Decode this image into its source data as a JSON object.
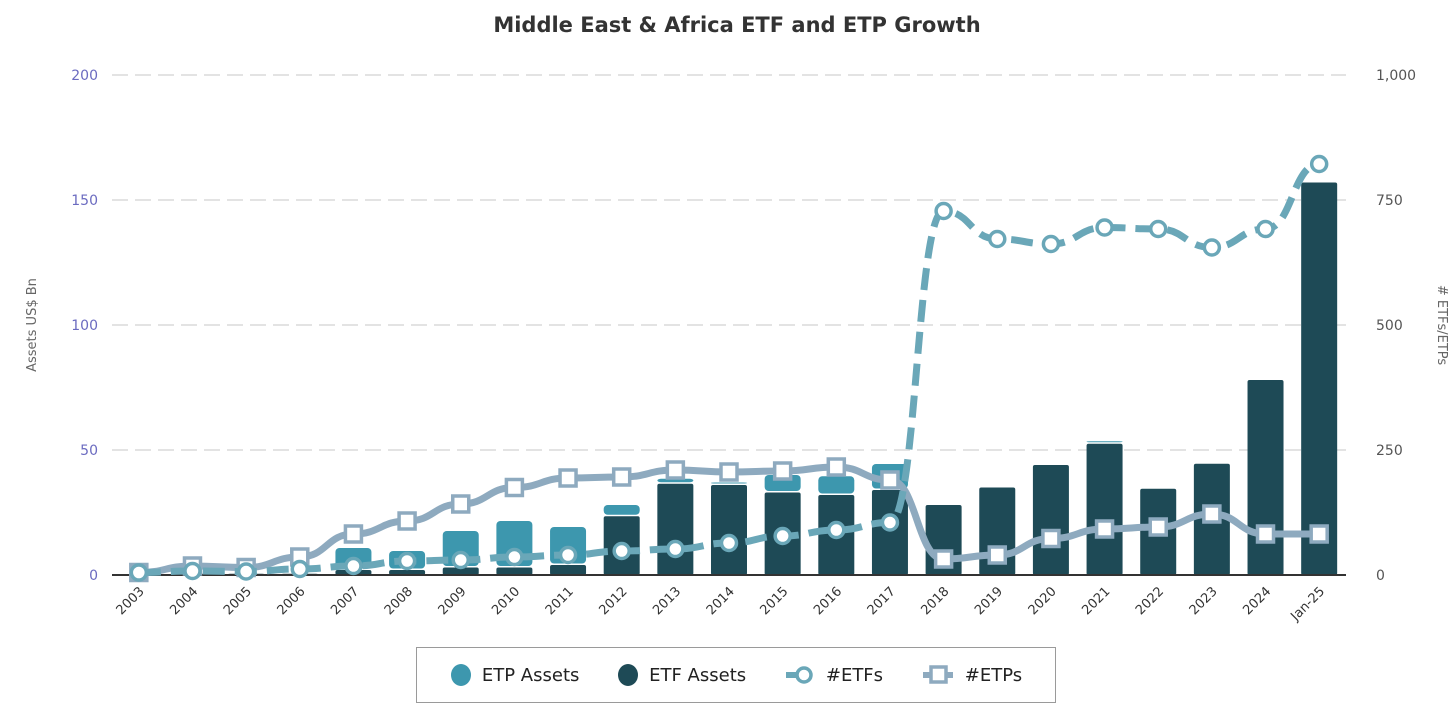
{
  "chart_data": {
    "type": "bar",
    "title": "Middle East & Africa ETF and ETP Growth",
    "xlabel": "",
    "ylabel": "Assets US$ Bn",
    "ylabel_right": "# ETFs/ETPs",
    "ylim": [
      0,
      200
    ],
    "ylim_right": [
      0,
      1000
    ],
    "yticks": [
      "0",
      "50",
      "100",
      "150",
      "200"
    ],
    "yticks_right": [
      "0",
      "250",
      "500",
      "750",
      "1,000"
    ],
    "grid": true,
    "legend_position": "bottom",
    "categories": [
      "2003",
      "2004",
      "2005",
      "2006",
      "2007",
      "2008",
      "2009",
      "2010",
      "2011",
      "2012",
      "2013",
      "2014",
      "2015",
      "2016",
      "2017",
      "2018",
      "2019",
      "2020",
      "2021",
      "2022",
      "2023",
      "2024",
      "Jan-25"
    ],
    "series": [
      {
        "name": "ETF Assets",
        "type": "bar",
        "stack": "assets",
        "axis": "left",
        "color": "#1e4a56",
        "values": [
          0.3,
          0.5,
          0.5,
          0.5,
          2,
          2,
          3,
          3,
          4,
          23.5,
          36.5,
          36,
          33,
          32,
          34,
          28,
          35,
          44,
          52.5,
          34.5,
          44.5,
          78,
          157
        ]
      },
      {
        "name": "ETP Assets",
        "type": "bar",
        "stack": "assets",
        "axis": "left",
        "color": "#3d97ae",
        "values": [
          0.2,
          0.5,
          0.5,
          0.5,
          8.8,
          7.6,
          14.6,
          18.6,
          15.2,
          4.5,
          2,
          1,
          7,
          7.5,
          10.4,
          0,
          0,
          0,
          1,
          0,
          0,
          0,
          0
        ]
      },
      {
        "name": "#ETFs",
        "type": "line",
        "axis": "right",
        "style": "dashed",
        "marker": "circle",
        "color": "#6aa7b8",
        "values": [
          5,
          8,
          7,
          12,
          18,
          28,
          30,
          36,
          40,
          48,
          52,
          64,
          78,
          90,
          105,
          728,
          672,
          662,
          695,
          692,
          655,
          692,
          822
        ]
      },
      {
        "name": "#ETPs",
        "type": "line",
        "axis": "right",
        "style": "solid",
        "marker": "square",
        "color": "#8eaabf",
        "values": [
          5,
          18,
          15,
          36,
          82,
          108,
          142,
          175,
          194,
          196,
          210,
          206,
          208,
          216,
          190,
          32,
          40,
          73,
          92,
          96,
          122,
          82,
          82
        ]
      }
    ]
  },
  "legend": {
    "items": [
      {
        "label": "ETP Assets",
        "symbol": "dot",
        "color": "#3d97ae"
      },
      {
        "label": "ETF Assets",
        "symbol": "dot",
        "color": "#1e4a56"
      },
      {
        "label": "#ETFs",
        "symbol": "line-circle",
        "color": "#6aa7b8"
      },
      {
        "label": "#ETPs",
        "symbol": "line-square",
        "color": "#8eaabf"
      }
    ]
  }
}
